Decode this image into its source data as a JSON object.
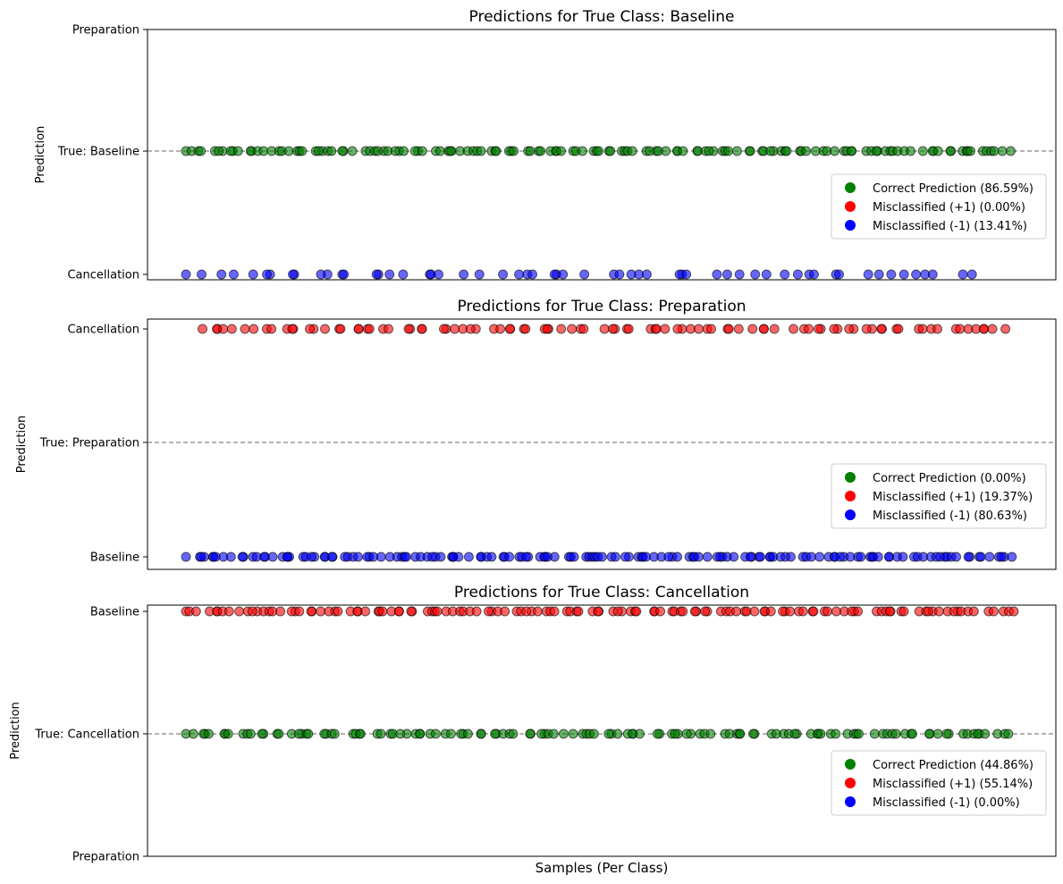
{
  "chart_data": [
    {
      "type": "scatter",
      "title": "Predictions for True Class: Baseline",
      "ylabel": "Prediction",
      "xlabel": "",
      "y_tick_labels": [
        "Cancellation",
        "True: Baseline",
        "Preparation"
      ],
      "reference_line_label": "True: Baseline",
      "legend_position": "right",
      "legend": [
        {
          "label": "Correct Prediction (86.59%)",
          "color": "#008000"
        },
        {
          "label": "Misclassified (+1) (0.00%)",
          "color": "#ff0000"
        },
        {
          "label": "Misclassified (-1) (13.41%)",
          "color": "#0000ff"
        }
      ],
      "series": [
        {
          "level": "True: Baseline",
          "color": "#008000",
          "range": [
            0,
            1
          ],
          "density": 140,
          "seed": 11
        },
        {
          "level": "Cancellation",
          "color": "#0000ff",
          "range": [
            0,
            0.96
          ],
          "density": 58,
          "seed": 23
        }
      ]
    },
    {
      "type": "scatter",
      "title": "Predictions for True Class: Preparation",
      "ylabel": "Prediction",
      "xlabel": "",
      "y_tick_labels": [
        "Baseline",
        "True: Preparation",
        "Cancellation"
      ],
      "reference_line_label": "True: Preparation",
      "legend_position": "right",
      "legend": [
        {
          "label": "Correct Prediction (0.00%)",
          "color": "#008000"
        },
        {
          "label": "Misclassified (+1) (19.37%)",
          "color": "#ff0000"
        },
        {
          "label": "Misclassified (-1) (80.63%)",
          "color": "#0000ff"
        }
      ],
      "series": [
        {
          "level": "Cancellation",
          "color": "#ff0000",
          "range": [
            0.02,
            1
          ],
          "density": 95,
          "seed": 37
        },
        {
          "level": "Baseline",
          "color": "#0000ff",
          "range": [
            0,
            1
          ],
          "density": 150,
          "seed": 41
        }
      ]
    },
    {
      "type": "scatter",
      "title": "Predictions for True Class: Cancellation",
      "ylabel": "Prediction",
      "xlabel": "Samples (Per Class)",
      "y_tick_labels": [
        "Preparation",
        "True: Cancellation",
        "Baseline"
      ],
      "reference_line_label": "True: Cancellation",
      "legend_position": "right",
      "legend": [
        {
          "label": "Correct Prediction (44.86%)",
          "color": "#008000"
        },
        {
          "label": "Misclassified (+1) (55.14%)",
          "color": "#ff0000"
        },
        {
          "label": "Misclassified (-1) (0.00%)",
          "color": "#0000ff"
        }
      ],
      "series": [
        {
          "level": "Baseline",
          "color": "#ff0000",
          "range": [
            0,
            1
          ],
          "density": 130,
          "seed": 53
        },
        {
          "level": "True: Cancellation",
          "color": "#008000",
          "range": [
            0,
            1
          ],
          "density": 125,
          "seed": 67
        }
      ]
    }
  ]
}
